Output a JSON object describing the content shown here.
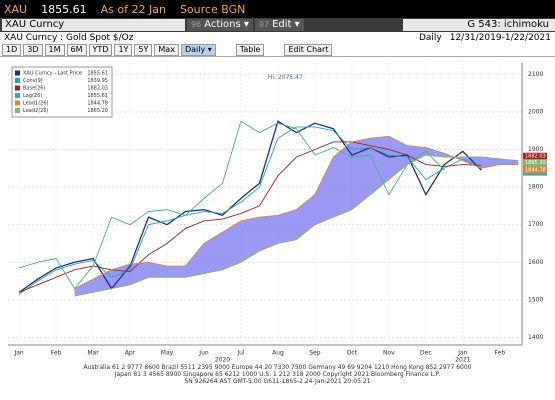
{
  "header": {
    "ticker": "XAU",
    "price": "1855.61",
    "as_of": "As of 22 Jan",
    "source": "Source BGN"
  },
  "toolbar": {
    "security": "XAU Curncy",
    "actions_num": "96",
    "actions": "Actions ▾",
    "edit_num": "97",
    "edit": "Edit ▾",
    "graph": "G 543: ichimoku"
  },
  "subheader": {
    "description": "XAU Curncy : Gold Spot $/Oz",
    "period": "Daily",
    "range": "12/31/2019-1/22/2021"
  },
  "buttons": {
    "ranges": [
      "1D",
      "3D",
      "1M",
      "6M",
      "YTD",
      "1Y",
      "5Y",
      "Max"
    ],
    "frequency": "Daily ▾",
    "table": "Table",
    "edit_chart": "Edit Chart"
  },
  "footer": [
    "Australia 61 2 9777 8600 Brazil 5511 2395 9000 Europe 44 20 7330 7500 Germany 49 69 9204 1210 Hong Kong 852 2977 6000",
    "Japan 81 3 4565 8900 Singapore 65 6212 1000 U.S. 1 212 318 2000 Copyright 2021 Bloomberg Finance L.P.",
    "SN 926264 AST GMT-5:00 G631-1865-2 24-Jan-2021 20:05:21"
  ],
  "chart_data": {
    "type": "line",
    "annotation": "Hi: 2075.47",
    "annotation_value": 2075.47,
    "annotation_x": 7.2,
    "x": [
      0,
      0.5,
      1,
      1.5,
      2,
      2.5,
      3,
      3.5,
      4,
      4.5,
      5,
      5.5,
      6,
      6.5,
      7,
      7.5,
      8,
      8.5,
      9,
      9.5,
      10,
      10.5,
      11,
      11.5,
      12,
      12.5,
      13,
      13.5
    ],
    "xlim": [
      -0.3,
      13.6
    ],
    "xticks": [
      {
        "value": 0,
        "label": "Jan"
      },
      {
        "value": 1,
        "label": "Feb"
      },
      {
        "value": 2,
        "label": "Mar"
      },
      {
        "value": 3,
        "label": "Apr"
      },
      {
        "value": 4,
        "label": "May"
      },
      {
        "value": 5,
        "label": "Jun"
      },
      {
        "value": 6,
        "label": "Jul"
      },
      {
        "value": 7,
        "label": "Aug"
      },
      {
        "value": 8,
        "label": "Sep"
      },
      {
        "value": 9,
        "label": "Oct"
      },
      {
        "value": 10,
        "label": "Nov"
      },
      {
        "value": 11,
        "label": "Dec"
      },
      {
        "value": 12,
        "label": "Jan"
      },
      {
        "value": 13,
        "label": "Feb"
      }
    ],
    "year_ticks": [
      {
        "value": 5.5,
        "label": "2020"
      },
      {
        "value": 12,
        "label": "2021"
      }
    ],
    "ylim": [
      1380,
      2130
    ],
    "yticks": [
      1400,
      1500,
      1600,
      1700,
      1800,
      1900,
      2000,
      2100
    ],
    "grid": true,
    "cloud_color": "#6f6ff0",
    "series": [
      {
        "name": "XAU Curncy - Last Price",
        "color": "#1b2f8a",
        "last": 1855.61,
        "values": [
          1520,
          1555,
          1585,
          1600,
          1610,
          1530,
          1590,
          1720,
          1700,
          1735,
          1740,
          1725,
          1770,
          1810,
          1975,
          1945,
          1970,
          1955,
          1885,
          1905,
          1880,
          1885,
          1780,
          1860,
          1895,
          1845,
          null,
          null
        ]
      },
      {
        "name": "Conv(9)",
        "color": "#2aa5b0",
        "last": 1839.95,
        "values": [
          1515,
          1550,
          1580,
          1595,
          1605,
          1560,
          1580,
          1700,
          1710,
          1725,
          1735,
          1730,
          1760,
          1800,
          1930,
          1960,
          1960,
          1950,
          1900,
          1905,
          1885,
          1880,
          1820,
          1850,
          1875,
          1850,
          null,
          null
        ]
      },
      {
        "name": "Base(26)",
        "color": "#a02020",
        "last": 1882.03,
        "values": [
          1520,
          1540,
          1560,
          1580,
          1590,
          1580,
          1575,
          1620,
          1650,
          1690,
          1710,
          1715,
          1730,
          1750,
          1830,
          1880,
          1900,
          1920,
          1920,
          1910,
          1900,
          1885,
          1860,
          1855,
          1860,
          1858,
          null,
          null
        ]
      },
      {
        "name": "Lag(26)",
        "color": "#3fae8c",
        "last": 1855.61,
        "values": [
          1585,
          1600,
          1610,
          1530,
          1590,
          1720,
          1700,
          1735,
          1740,
          1725,
          1770,
          1810,
          1975,
          1945,
          1970,
          1955,
          1885,
          1905,
          1880,
          1885,
          1780,
          1860,
          1895,
          1845,
          null,
          null,
          null,
          null
        ]
      },
      {
        "name": "Lead1(26)",
        "color": "#d08a40",
        "last": 1844.78,
        "values": [
          null,
          null,
          null,
          1530,
          1555,
          1580,
          1595,
          1600,
          1590,
          1590,
          1650,
          1680,
          1710,
          1720,
          1725,
          1740,
          1780,
          1880,
          1920,
          1930,
          1935,
          1910,
          1905,
          1890,
          1870,
          1850,
          1860,
          1860
        ]
      },
      {
        "name": "Lead2(26)",
        "color": "#8cb070",
        "last": {
          "value": 1865.2,
          "label": "1865.20"
        },
        "values": [
          null,
          null,
          null,
          1510,
          1520,
          1530,
          1540,
          1560,
          1560,
          1560,
          1570,
          1580,
          1600,
          1630,
          1650,
          1660,
          1700,
          1720,
          1740,
          1780,
          1820,
          1860,
          1885,
          1880,
          1880,
          1880,
          1875,
          1870
        ]
      }
    ]
  }
}
